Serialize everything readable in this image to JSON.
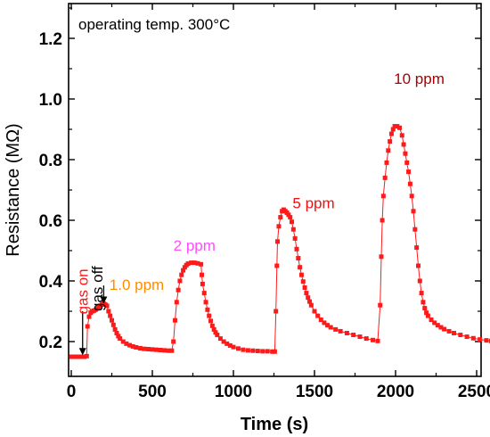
{
  "chart_data": {
    "type": "scatter",
    "title": "",
    "annotation_top": "operating temp. 300°C",
    "xlabel": "Time (s)",
    "ylabel": "Resistance (MΩ)",
    "xlim": [
      0,
      2600
    ],
    "ylim": [
      0.1,
      1.3
    ],
    "xticks": [
      0,
      500,
      1000,
      1500,
      2000,
      2500
    ],
    "yticks": [
      0.2,
      0.4,
      0.6,
      0.8,
      1.0,
      1.2
    ],
    "ytick_labels": [
      "0.2",
      "0.4",
      "0.6",
      "0.8",
      "1.0",
      "1.2"
    ],
    "grid": false,
    "marker_color": "#ff1a1a",
    "annotations": [
      {
        "text": "gas on",
        "color": "#ff1a1a",
        "x": 70,
        "y": 0.29,
        "rotate": -90
      },
      {
        "text": "gas off",
        "color": "#000000",
        "x": 160,
        "y": 0.3,
        "rotate": -90
      },
      {
        "text": "1.0 ppm",
        "color": "#ff8c00",
        "x": 235,
        "y": 0.37
      },
      {
        "text": "2 ppm",
        "color": "#ff4dff",
        "x": 630,
        "y": 0.5
      },
      {
        "text": "5 ppm",
        "color": "#ee1111",
        "x": 1365,
        "y": 0.64
      },
      {
        "text": "10 ppm",
        "color": "#aa0000",
        "x": 1990,
        "y": 1.05
      }
    ],
    "arrows": [
      {
        "name": "gas-on-arrow",
        "x": 70,
        "y_from": 0.3,
        "y_to": 0.155
      },
      {
        "name": "gas-off-arrow",
        "x": 200,
        "y_from": 0.385,
        "y_to": 0.325
      }
    ],
    "series": [
      {
        "points": [
          [
            0,
            0.15
          ],
          [
            20,
            0.15
          ],
          [
            40,
            0.15
          ],
          [
            60,
            0.15
          ],
          [
            80,
            0.15
          ],
          [
            95,
            0.152
          ],
          [
            100,
            0.25
          ],
          [
            110,
            0.282
          ],
          [
            120,
            0.295
          ],
          [
            130,
            0.3
          ],
          [
            140,
            0.302
          ],
          [
            150,
            0.305
          ],
          [
            160,
            0.31
          ],
          [
            170,
            0.315
          ],
          [
            180,
            0.318
          ],
          [
            190,
            0.322
          ],
          [
            200,
            0.325
          ],
          [
            210,
            0.322
          ],
          [
            220,
            0.318
          ],
          [
            230,
            0.3
          ],
          [
            240,
            0.285
          ],
          [
            250,
            0.27
          ],
          [
            260,
            0.255
          ],
          [
            270,
            0.24
          ],
          [
            280,
            0.228
          ],
          [
            290,
            0.218
          ],
          [
            300,
            0.21
          ],
          [
            320,
            0.2
          ],
          [
            340,
            0.193
          ],
          [
            360,
            0.188
          ],
          [
            380,
            0.184
          ],
          [
            400,
            0.181
          ],
          [
            425,
            0.178
          ],
          [
            450,
            0.176
          ],
          [
            475,
            0.175
          ],
          [
            500,
            0.174
          ],
          [
            525,
            0.173
          ],
          [
            550,
            0.172
          ],
          [
            575,
            0.171
          ],
          [
            600,
            0.17
          ],
          [
            620,
            0.17
          ],
          [
            630,
            0.2
          ],
          [
            640,
            0.27
          ],
          [
            650,
            0.33
          ],
          [
            660,
            0.37
          ],
          [
            670,
            0.4
          ],
          [
            680,
            0.42
          ],
          [
            690,
            0.435
          ],
          [
            700,
            0.445
          ],
          [
            710,
            0.452
          ],
          [
            720,
            0.457
          ],
          [
            740,
            0.46
          ],
          [
            760,
            0.46
          ],
          [
            780,
            0.458
          ],
          [
            800,
            0.455
          ],
          [
            805,
            0.42
          ],
          [
            810,
            0.39
          ],
          [
            820,
            0.36
          ],
          [
            830,
            0.33
          ],
          [
            840,
            0.305
          ],
          [
            850,
            0.285
          ],
          [
            860,
            0.268
          ],
          [
            870,
            0.252
          ],
          [
            880,
            0.24
          ],
          [
            890,
            0.23
          ],
          [
            900,
            0.222
          ],
          [
            920,
            0.21
          ],
          [
            940,
            0.2
          ],
          [
            960,
            0.193
          ],
          [
            980,
            0.187
          ],
          [
            1000,
            0.182
          ],
          [
            1030,
            0.177
          ],
          [
            1060,
            0.173
          ],
          [
            1090,
            0.171
          ],
          [
            1120,
            0.17
          ],
          [
            1150,
            0.169
          ],
          [
            1180,
            0.168
          ],
          [
            1210,
            0.168
          ],
          [
            1240,
            0.167
          ],
          [
            1255,
            0.167
          ],
          [
            1262,
            0.3
          ],
          [
            1268,
            0.45
          ],
          [
            1272,
            0.53
          ],
          [
            1280,
            0.58
          ],
          [
            1290,
            0.61
          ],
          [
            1300,
            0.63
          ],
          [
            1310,
            0.635
          ],
          [
            1320,
            0.63
          ],
          [
            1330,
            0.625
          ],
          [
            1340,
            0.618
          ],
          [
            1350,
            0.61
          ],
          [
            1360,
            0.595
          ],
          [
            1370,
            0.57
          ],
          [
            1380,
            0.54
          ],
          [
            1390,
            0.505
          ],
          [
            1400,
            0.475
          ],
          [
            1410,
            0.445
          ],
          [
            1420,
            0.42
          ],
          [
            1430,
            0.398
          ],
          [
            1440,
            0.378
          ],
          [
            1450,
            0.36
          ],
          [
            1460,
            0.345
          ],
          [
            1470,
            0.332
          ],
          [
            1480,
            0.32
          ],
          [
            1500,
            0.3
          ],
          [
            1520,
            0.285
          ],
          [
            1540,
            0.272
          ],
          [
            1560,
            0.262
          ],
          [
            1580,
            0.254
          ],
          [
            1600,
            0.247
          ],
          [
            1630,
            0.24
          ],
          [
            1660,
            0.234
          ],
          [
            1700,
            0.228
          ],
          [
            1740,
            0.222
          ],
          [
            1780,
            0.216
          ],
          [
            1820,
            0.21
          ],
          [
            1860,
            0.205
          ],
          [
            1890,
            0.202
          ],
          [
            1905,
            0.32
          ],
          [
            1912,
            0.48
          ],
          [
            1918,
            0.6
          ],
          [
            1925,
            0.68
          ],
          [
            1935,
            0.74
          ],
          [
            1945,
            0.79
          ],
          [
            1955,
            0.83
          ],
          [
            1965,
            0.86
          ],
          [
            1975,
            0.885
          ],
          [
            1985,
            0.9
          ],
          [
            1995,
            0.91
          ],
          [
            2010,
            0.91
          ],
          [
            2025,
            0.905
          ],
          [
            2040,
            0.88
          ],
          [
            2050,
            0.85
          ],
          [
            2060,
            0.82
          ],
          [
            2070,
            0.79
          ],
          [
            2080,
            0.76
          ],
          [
            2090,
            0.72
          ],
          [
            2100,
            0.68
          ],
          [
            2110,
            0.63
          ],
          [
            2120,
            0.57
          ],
          [
            2130,
            0.51
          ],
          [
            2140,
            0.45
          ],
          [
            2150,
            0.4
          ],
          [
            2160,
            0.36
          ],
          [
            2170,
            0.33
          ],
          [
            2180,
            0.31
          ],
          [
            2190,
            0.295
          ],
          [
            2200,
            0.285
          ],
          [
            2220,
            0.272
          ],
          [
            2240,
            0.262
          ],
          [
            2260,
            0.254
          ],
          [
            2280,
            0.247
          ],
          [
            2300,
            0.241
          ],
          [
            2330,
            0.234
          ],
          [
            2360,
            0.228
          ],
          [
            2400,
            0.222
          ],
          [
            2440,
            0.216
          ],
          [
            2480,
            0.211
          ],
          [
            2520,
            0.207
          ],
          [
            2560,
            0.204
          ],
          [
            2590,
            0.202
          ]
        ]
      }
    ]
  }
}
